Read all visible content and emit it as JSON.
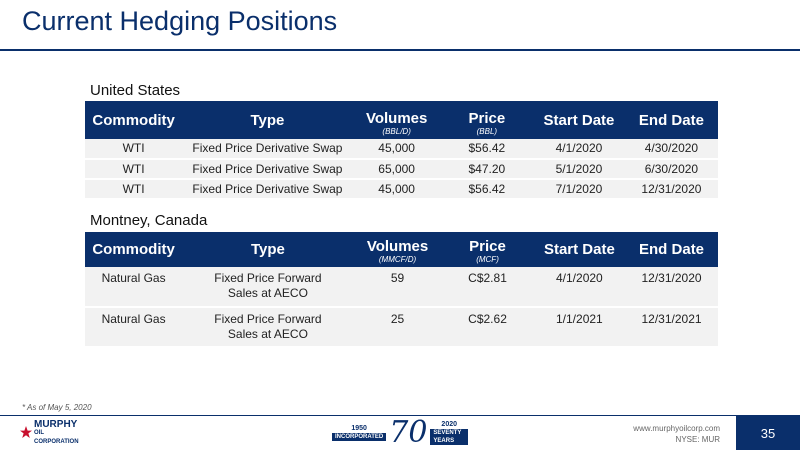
{
  "title": "Current Hedging Positions",
  "colors": {
    "navy": "#0a2f6b",
    "row_bg": "#f2f2f2"
  },
  "us": {
    "label": "United States",
    "headers": {
      "commodity": "Commodity",
      "type": "Type",
      "volumes": "Volumes",
      "volumes_unit": "(BBL/D)",
      "price": "Price",
      "price_unit": "(BBL)",
      "start": "Start Date",
      "end": "End Date"
    },
    "rows": [
      {
        "commodity": "WTI",
        "type": "Fixed Price Derivative Swap",
        "volumes": "45,000",
        "price": "$56.42",
        "start": "4/1/2020",
        "end": "4/30/2020"
      },
      {
        "commodity": "WTI",
        "type": "Fixed Price Derivative Swap",
        "volumes": "65,000",
        "price": "$47.20",
        "start": "5/1/2020",
        "end": "6/30/2020"
      },
      {
        "commodity": "WTI",
        "type": "Fixed Price Derivative Swap",
        "volumes": "45,000",
        "price": "$56.42",
        "start": "7/1/2020",
        "end": "12/31/2020"
      }
    ]
  },
  "canada": {
    "label": "Montney, Canada",
    "headers": {
      "commodity": "Commodity",
      "type": "Type",
      "volumes": "Volumes",
      "volumes_unit": "(MMCF/D)",
      "price": "Price",
      "price_unit": "(MCF)",
      "start": "Start Date",
      "end": "End Date"
    },
    "rows": [
      {
        "commodity": "Natural Gas",
        "type": "Fixed Price Forward Sales at AECO",
        "volumes": "59",
        "price": "C$2.81",
        "start": "4/1/2020",
        "end": "12/31/2020"
      },
      {
        "commodity": "Natural Gas",
        "type": "Fixed Price Forward Sales at AECO",
        "volumes": "25",
        "price": "C$2.62",
        "start": "1/1/2021",
        "end": "12/31/2021"
      }
    ]
  },
  "footnote": "* As of May 5, 2020",
  "footer": {
    "logo_line1": "MURPHY",
    "logo_line2": "OIL CORPORATION",
    "anniv_year_left": "1950",
    "anniv_band_left": "INCORPORATED",
    "anniv_big": "70",
    "anniv_year_right": "2020",
    "anniv_band_right": "SEVENTY YEARS",
    "website": "www.murphyoilcorp.com",
    "ticker": "NYSE: MUR",
    "page": "35"
  }
}
